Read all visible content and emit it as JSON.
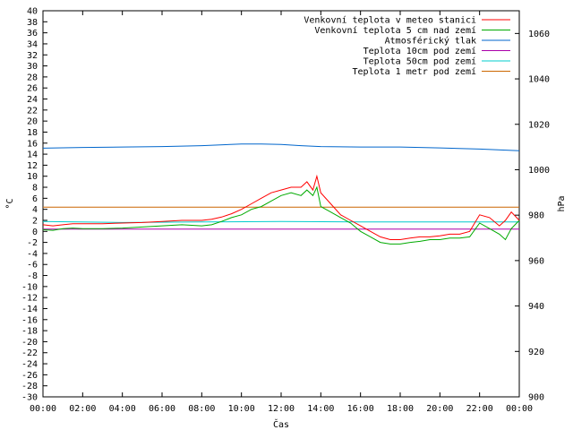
{
  "chart_data": {
    "type": "line",
    "xlabel": "Čas",
    "ylabel_left": "°C",
    "ylabel_right": "hPa",
    "ylim_left": [
      -30,
      40
    ],
    "ylim_right": [
      900,
      1070
    ],
    "xlim_hours": [
      0,
      24
    ],
    "left_ticks": [
      40,
      38,
      36,
      34,
      32,
      30,
      28,
      26,
      24,
      22,
      20,
      18,
      16,
      14,
      12,
      10,
      8,
      6,
      4,
      2,
      0,
      -2,
      -4,
      -6,
      -8,
      -10,
      -12,
      -14,
      -16,
      -18,
      -20,
      -22,
      -24,
      -26,
      -28,
      -30
    ],
    "right_ticks": [
      1060,
      1040,
      1020,
      1000,
      980,
      960,
      940,
      920,
      900
    ],
    "x_ticks": [
      {
        "h": 0,
        "label": "00:00"
      },
      {
        "h": 2,
        "label": "02:00"
      },
      {
        "h": 4,
        "label": "04:00"
      },
      {
        "h": 6,
        "label": "06:00"
      },
      {
        "h": 8,
        "label": "08:00"
      },
      {
        "h": 10,
        "label": "10:00"
      },
      {
        "h": 12,
        "label": "12:00"
      },
      {
        "h": 14,
        "label": "14:00"
      },
      {
        "h": 16,
        "label": "16:00"
      },
      {
        "h": 18,
        "label": "18:00"
      },
      {
        "h": 20,
        "label": "20:00"
      },
      {
        "h": 22,
        "label": "22:00"
      },
      {
        "h": 24,
        "label": "00:00"
      }
    ],
    "grid": false,
    "legend_position": "top-right",
    "series": [
      {
        "name": "Venkovní teplota v meteo stanici",
        "color": "#ff0000",
        "axis": "left",
        "x": [
          0,
          0.5,
          1,
          1.5,
          2,
          3,
          4,
          5,
          6,
          7,
          8,
          8.5,
          9,
          9.5,
          10,
          10.5,
          11,
          11.5,
          12,
          12.5,
          13,
          13.3,
          13.6,
          13.8,
          14,
          14.5,
          15,
          15.5,
          16,
          16.5,
          17,
          17.5,
          18,
          18.5,
          19,
          19.5,
          20,
          20.5,
          21,
          21.5,
          22,
          22.5,
          23,
          23.3,
          23.6,
          24
        ],
        "y": [
          1.2,
          1.0,
          1.2,
          1.4,
          1.4,
          1.4,
          1.5,
          1.6,
          1.8,
          2.0,
          2.0,
          2.2,
          2.6,
          3.2,
          4.0,
          5.0,
          6.0,
          7.0,
          7.5,
          8.0,
          8.0,
          9.0,
          7.5,
          10.0,
          7.0,
          5.0,
          3.0,
          2.0,
          1.0,
          0.0,
          -1.0,
          -1.5,
          -1.5,
          -1.2,
          -1.0,
          -1.0,
          -0.8,
          -0.5,
          -0.5,
          0.0,
          3.0,
          2.5,
          1.0,
          2.0,
          3.5,
          2.0
        ]
      },
      {
        "name": "Venkovní teplota 5 cm nad zemí",
        "color": "#00aa00",
        "axis": "left",
        "x": [
          0,
          0.5,
          1,
          1.5,
          2,
          3,
          4,
          5,
          6,
          7,
          8,
          8.5,
          9,
          9.5,
          10,
          10.5,
          11,
          11.5,
          12,
          12.5,
          13,
          13.3,
          13.6,
          13.8,
          14,
          14.5,
          15,
          15.5,
          16,
          16.5,
          17,
          17.5,
          18,
          18.5,
          19,
          19.5,
          20,
          20.5,
          21,
          21.5,
          22,
          22.5,
          23,
          23.3,
          23.6,
          24
        ],
        "y": [
          0.3,
          0.2,
          0.5,
          0.6,
          0.5,
          0.5,
          0.6,
          0.8,
          1.0,
          1.2,
          1.0,
          1.2,
          1.8,
          2.5,
          3.0,
          4.0,
          4.5,
          5.5,
          6.5,
          7.0,
          6.5,
          7.5,
          6.5,
          8.0,
          4.5,
          3.5,
          2.5,
          1.5,
          0.0,
          -1.0,
          -2.0,
          -2.3,
          -2.3,
          -2.0,
          -1.8,
          -1.5,
          -1.5,
          -1.2,
          -1.2,
          -1.0,
          1.5,
          0.5,
          -0.5,
          -1.5,
          0.5,
          2.0
        ]
      },
      {
        "name": "Atmosférický tlak",
        "color": "#0066cc",
        "axis": "right",
        "x": [
          0,
          2,
          4,
          6,
          8,
          10,
          11,
          12,
          13,
          14,
          16,
          18,
          20,
          22,
          24
        ],
        "y": [
          1009.5,
          1009.8,
          1010.0,
          1010.2,
          1010.6,
          1011.3,
          1011.3,
          1011.1,
          1010.6,
          1010.2,
          1010.0,
          1010.0,
          1009.6,
          1009.1,
          1008.4
        ]
      },
      {
        "name": "Teplota 10cm pod zemí",
        "color": "#aa00aa",
        "axis": "left",
        "x": [
          0,
          24
        ],
        "y": [
          0.4,
          0.4
        ]
      },
      {
        "name": "Teplota 50cm pod zemí",
        "color": "#00cccc",
        "axis": "left",
        "x": [
          0,
          4,
          8,
          12,
          16,
          20,
          24
        ],
        "y": [
          1.8,
          1.6,
          1.7,
          1.8,
          1.7,
          1.7,
          1.7
        ]
      },
      {
        "name": "Teplota 1 metr pod zemí",
        "color": "#cc6600",
        "axis": "left",
        "x": [
          0,
          24
        ],
        "y": [
          4.4,
          4.4
        ]
      }
    ]
  }
}
